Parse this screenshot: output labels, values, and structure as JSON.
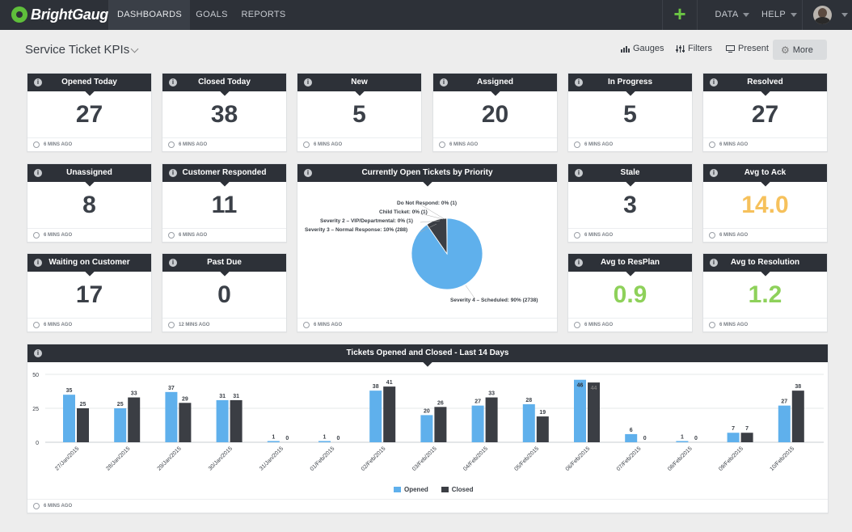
{
  "app": {
    "logo": "BrightGauge"
  },
  "nav": {
    "dashboards": "DASHBOARDS",
    "goals": "GOALS",
    "reports": "REPORTS",
    "add": "+",
    "data": "DATA",
    "help": "HELP"
  },
  "page": {
    "title": "Service Ticket KPIs",
    "tools": {
      "gauges": "Gauges",
      "filters": "Filters",
      "present": "Present",
      "more": "More"
    }
  },
  "colors": {
    "nav_bg": "#2d3138",
    "accent_green": "#6cc644",
    "orange": "#f6c15c",
    "bar_opened": "#5fb0ec",
    "bar_closed": "#3b3e44"
  },
  "gauges": [
    {
      "title": "Opened Today",
      "value": "27",
      "updated": "6 MINS AGO"
    },
    {
      "title": "Closed Today",
      "value": "38",
      "updated": "6 MINS AGO"
    },
    {
      "title": "New",
      "value": "5",
      "updated": "6 MINS AGO"
    },
    {
      "title": "Assigned",
      "value": "20",
      "updated": "6 MINS AGO"
    },
    {
      "title": "In Progress",
      "value": "5",
      "updated": "6 MINS AGO"
    },
    {
      "title": "Resolved",
      "value": "27",
      "updated": "6 MINS AGO"
    },
    {
      "title": "Unassigned",
      "value": "8",
      "updated": "6 MINS AGO"
    },
    {
      "title": "Customer Responded",
      "value": "11",
      "updated": "6 MINS AGO"
    },
    {
      "title": "Stale",
      "value": "3",
      "updated": "6 MINS AGO"
    },
    {
      "title": "Avg to Ack",
      "value": "14.0",
      "updated": "6 MINS AGO",
      "color": "#f6c15c"
    },
    {
      "title": "Waiting on Customer",
      "value": "17",
      "updated": "6 MINS AGO"
    },
    {
      "title": "Past Due",
      "value": "0",
      "updated": "12 MINS AGO"
    },
    {
      "title": "Avg to ResPlan",
      "value": "0.9",
      "updated": "6 MINS AGO",
      "color": "#8ed15a"
    },
    {
      "title": "Avg to Resolution",
      "value": "1.2",
      "updated": "6 MINS AGO",
      "color": "#8ed15a"
    }
  ],
  "pie": {
    "title": "Currently Open Tickets by Priority",
    "updated": "6 MINS AGO",
    "labels": [
      "Do Not Respond: 0% (1)",
      "Child Ticket: 0% (1)",
      "Severity 2 – VIP/Departmental: 0% (1)",
      "Severity 3 – Normal Response: 10% (288)",
      "Severity 4 – Scheduled: 90% (2738)"
    ]
  },
  "bar_chart": {
    "title": "Tickets Opened and Closed - Last 14 Days",
    "updated": "6 MINS AGO"
  },
  "chart_data": [
    {
      "type": "pie",
      "title": "Currently Open Tickets by Priority",
      "slices": [
        {
          "label": "Do Not Respond",
          "percent": 0,
          "count": 1,
          "color": "#3b3e44"
        },
        {
          "label": "Child Ticket",
          "percent": 0,
          "count": 1,
          "color": "#3b3e44"
        },
        {
          "label": "Severity 2 – VIP/Departmental",
          "percent": 0,
          "count": 1,
          "color": "#3b3e44"
        },
        {
          "label": "Severity 3 – Normal Response",
          "percent": 10,
          "count": 288,
          "color": "#3b3e44"
        },
        {
          "label": "Severity 4 – Scheduled",
          "percent": 90,
          "count": 2738,
          "color": "#5fb0ec"
        }
      ]
    },
    {
      "type": "bar",
      "title": "Tickets Opened and Closed - Last 14 Days",
      "categories": [
        "27/Jan/2015",
        "28/Jan/2015",
        "29/Jan/2015",
        "30/Jan/2015",
        "31/Jan/2015",
        "01/Feb/2015",
        "02/Feb/2015",
        "03/Feb/2015",
        "04/Feb/2015",
        "05/Feb/2015",
        "06/Feb/2015",
        "07/Feb/2015",
        "08/Feb/2015",
        "09/Feb/2015",
        "10/Feb/2015"
      ],
      "series": [
        {
          "name": "Opened",
          "color": "#5fb0ec",
          "values": [
            35,
            25,
            37,
            31,
            1,
            1,
            38,
            20,
            27,
            28,
            46,
            6,
            1,
            7,
            27
          ]
        },
        {
          "name": "Closed",
          "color": "#3b3e44",
          "values": [
            25,
            33,
            29,
            31,
            0,
            0,
            41,
            26,
            33,
            19,
            44,
            0,
            0,
            7,
            38
          ]
        }
      ],
      "yticks": [
        0,
        25,
        50
      ],
      "ylim": [
        0,
        50
      ],
      "legend": "bottom-center",
      "grid": true
    }
  ]
}
